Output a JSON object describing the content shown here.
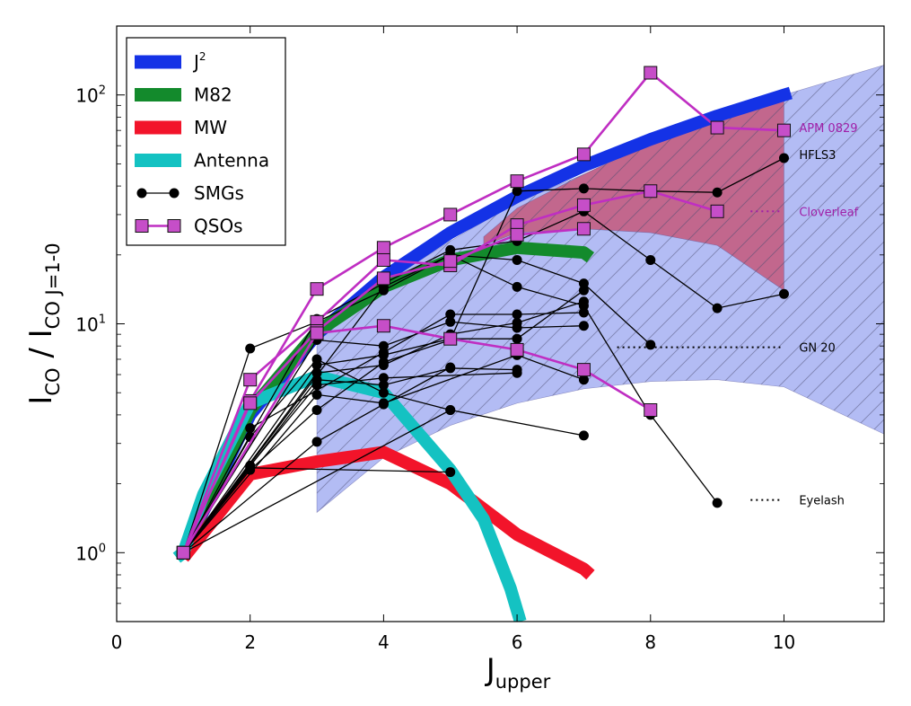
{
  "chart_data": {
    "type": "line",
    "title": "",
    "xlabel": "J",
    "xlabel_sub": "upper",
    "ylabel": "I",
    "ylabel_sub1": "CO",
    "ylabel_sep": " / I",
    "ylabel_sub2": "CO J=1-0",
    "xlim": [
      0,
      11.5
    ],
    "ylim": [
      0.5,
      200
    ],
    "yscale": "log",
    "grid": false,
    "x_ticks": [
      0,
      2,
      4,
      6,
      8,
      10
    ],
    "y_ticks": [
      {
        "value": 1,
        "base": "10",
        "exp": "0"
      },
      {
        "value": 10,
        "base": "10",
        "exp": "1"
      },
      {
        "value": 100,
        "base": "10",
        "exp": "2"
      }
    ],
    "legend": {
      "position": "top-left",
      "entries": [
        {
          "label": "J",
          "sup": "2",
          "color": "#1432e6",
          "kind": "band"
        },
        {
          "label": "M82",
          "color": "#138a2c",
          "kind": "band"
        },
        {
          "label": "MW",
          "color": "#f2142a",
          "kind": "band"
        },
        {
          "label": "Antenna",
          "color": "#14c2c2",
          "kind": "band"
        },
        {
          "label": "SMGs",
          "color": "#000000",
          "kind": "line-circle"
        },
        {
          "label": "QSOs",
          "color": "#bf2ec2",
          "kind": "line-square"
        }
      ]
    },
    "bands": [
      {
        "name": "J^2",
        "color": "#1432e6",
        "x": [
          1,
          2,
          3,
          4,
          5,
          6,
          7,
          8,
          9,
          10,
          10.1
        ],
        "y": [
          1,
          4,
          9,
          16,
          25,
          36,
          49,
          64,
          81,
          100,
          102
        ]
      },
      {
        "name": "M82",
        "color": "#138a2c",
        "x": [
          1,
          2,
          3,
          4,
          5,
          6,
          7,
          7.1
        ],
        "y": [
          1,
          4.2,
          9.2,
          14.5,
          19,
          21.5,
          20.5,
          19.5
        ]
      },
      {
        "name": "MW",
        "color": "#f2142a",
        "x": [
          1,
          2,
          3,
          4,
          5,
          6,
          7,
          7.1
        ],
        "y": [
          0.95,
          2.2,
          2.5,
          2.75,
          2.0,
          1.2,
          0.85,
          0.8
        ]
      },
      {
        "name": "Antenna",
        "color": "#14c2c2",
        "x": [
          0.9,
          1,
          1.3,
          2,
          3,
          4,
          5,
          5.5,
          5.9,
          6.05
        ],
        "y": [
          0.95,
          1,
          1.8,
          4.5,
          5.9,
          5.0,
          2.3,
          1.4,
          0.7,
          0.5
        ]
      }
    ],
    "regions": [
      {
        "name": "blue-hatched-region",
        "color": "#a6b0f2",
        "hatch": true,
        "upper": {
          "x": [
            3,
            4,
            5,
            6,
            7,
            8,
            9,
            10,
            11.5
          ],
          "y": [
            9,
            15,
            23,
            34,
            45,
            60,
            80,
            100,
            135
          ]
        },
        "lower": {
          "x": [
            3,
            4,
            5,
            6,
            7,
            8,
            9,
            10,
            11.5
          ],
          "y": [
            1.5,
            2.6,
            3.6,
            4.5,
            5.2,
            5.6,
            5.7,
            5.3,
            3.3
          ]
        }
      },
      {
        "name": "red-hatched-region",
        "color": "#c4587a",
        "hatch": true,
        "upper": {
          "x": [
            5.5,
            6,
            7,
            8,
            9,
            10
          ],
          "y": [
            24,
            32,
            45,
            62,
            80,
            95
          ]
        },
        "lower": {
          "x": [
            5.5,
            6,
            7,
            8,
            9,
            10
          ],
          "y": [
            22,
            25,
            26,
            25,
            22,
            14
          ]
        }
      }
    ],
    "smg_series": [
      {
        "x": [
          1,
          2,
          3,
          4,
          5,
          6,
          7,
          8,
          9,
          10
        ],
        "y": [
          1,
          2.3,
          4.2,
          6.8,
          8.5,
          38,
          39,
          38,
          37.5,
          53
        ]
      },
      {
        "x": [
          1,
          3,
          4,
          5,
          6,
          7,
          8,
          9,
          10
        ],
        "y": [
          1,
          10.5,
          15,
          21,
          23,
          31,
          19,
          11.7,
          13.5
        ]
      },
      {
        "x": [
          1,
          2,
          3,
          4,
          5,
          6,
          7,
          8
        ],
        "y": [
          1,
          7.8,
          10.2,
          14,
          20,
          19,
          15,
          8.1
        ]
      },
      {
        "x": [
          1,
          4,
          5,
          6,
          7,
          8,
          9
        ],
        "y": [
          1,
          14.5,
          20,
          14.5,
          12,
          4.0,
          1.65
        ]
      },
      {
        "x": [
          1,
          2,
          4,
          5,
          6,
          7
        ],
        "y": [
          1,
          3.5,
          7.5,
          11,
          11,
          11.2
        ]
      },
      {
        "x": [
          1,
          3,
          4,
          5,
          6,
          7
        ],
        "y": [
          1,
          8.5,
          8.0,
          10.2,
          9.6,
          9.8
        ]
      },
      {
        "x": [
          1,
          3,
          4,
          5,
          6,
          7
        ],
        "y": [
          1,
          6.6,
          7.3,
          8.6,
          8.6,
          14
        ]
      },
      {
        "x": [
          1,
          3,
          4,
          5,
          6,
          7
        ],
        "y": [
          1,
          6.1,
          6.6,
          9.0,
          10.1,
          12.5
        ]
      },
      {
        "x": [
          1,
          3,
          4,
          5,
          6
        ],
        "y": [
          1,
          5.7,
          5.4,
          6.4,
          6.3
        ]
      },
      {
        "x": [
          1,
          3,
          4,
          6,
          7
        ],
        "y": [
          1,
          4.9,
          4.5,
          7.3,
          5.7
        ]
      },
      {
        "x": [
          1,
          2,
          3,
          4,
          6
        ],
        "y": [
          1,
          2.4,
          5.4,
          5.8,
          6.1
        ]
      },
      {
        "x": [
          1,
          2,
          3,
          4,
          5
        ],
        "y": [
          1,
          3.2,
          7.0,
          5.0,
          4.2
        ]
      },
      {
        "x": [
          1,
          3,
          4,
          5
        ],
        "y": [
          1,
          3.05,
          4.45,
          6.45
        ]
      },
      {
        "x": [
          1,
          2,
          5
        ],
        "y": [
          1,
          2.35,
          2.25
        ]
      },
      {
        "x": [
          1,
          5,
          7
        ],
        "y": [
          1,
          4.2,
          3.25
        ]
      }
    ],
    "qso_series": [
      {
        "x": [
          1,
          2,
          3,
          4,
          5,
          6,
          7,
          8,
          9,
          10
        ],
        "y": [
          1,
          4.6,
          14.2,
          21.5,
          30,
          42,
          55,
          125,
          72,
          70
        ]
      },
      {
        "x": [
          1,
          2,
          3,
          4,
          5,
          6,
          7,
          8,
          9
        ],
        "y": [
          1,
          5.7,
          10.2,
          19,
          18,
          27,
          33,
          38,
          31
        ]
      },
      {
        "x": [
          1,
          2,
          3,
          4,
          5,
          6,
          7
        ],
        "y": [
          1,
          4.5,
          9.3,
          15.8,
          18.8,
          24.5,
          26
        ]
      },
      {
        "x": [
          1,
          3,
          4,
          5,
          6,
          7,
          8
        ],
        "y": [
          1,
          9.1,
          9.8,
          8.6,
          7.7,
          6.3,
          4.2
        ]
      }
    ],
    "annotations": [
      {
        "text": "APM 0829",
        "color": "#a020a8",
        "x": 10.2,
        "y": 72,
        "dotted": false
      },
      {
        "text": "HFLS3",
        "color": "#000000",
        "x": 10.2,
        "y": 55,
        "dotted": false
      },
      {
        "text": "Cloverleaf",
        "color": "#a020a8",
        "x": 10.2,
        "y": 31,
        "dotted": true,
        "dot_from": 9.5,
        "dot_to": 10.0
      },
      {
        "text": "GN 20",
        "color": "#000000",
        "x": 10.2,
        "y": 7.9,
        "dotted": true,
        "dot_from": 7.5,
        "dot_to": 10.0
      },
      {
        "text": "Eyelash",
        "color": "#000000",
        "x": 10.2,
        "y": 1.7,
        "dotted": true,
        "dot_from": 9.5,
        "dot_to": 10.0
      }
    ]
  }
}
